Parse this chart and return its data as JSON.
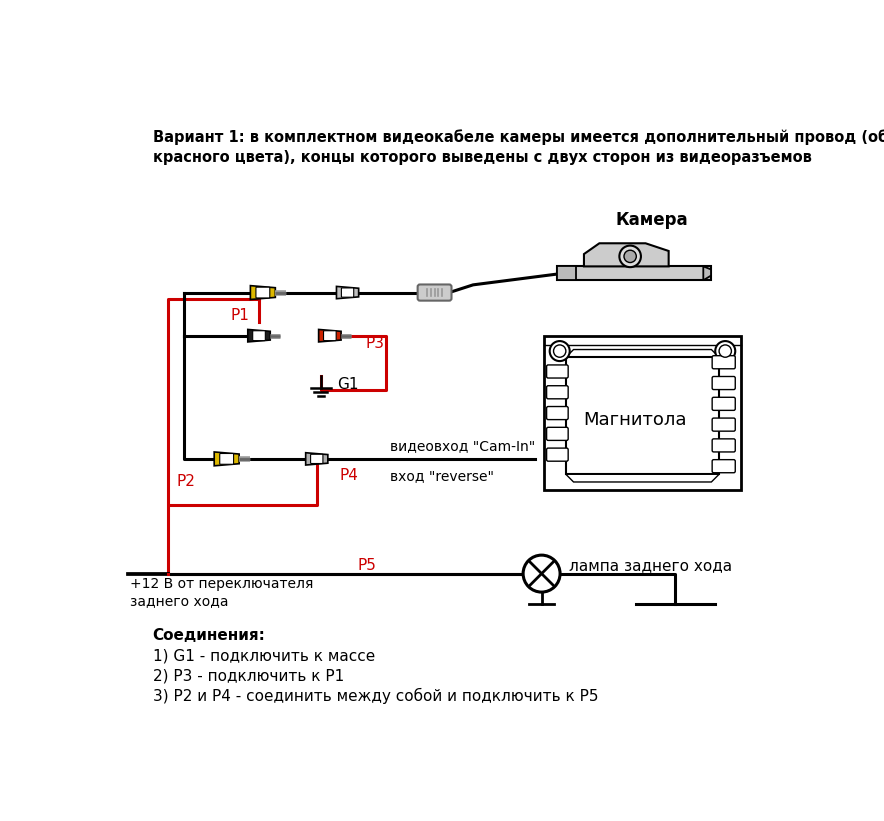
{
  "title_text": "Вариант 1: в комплектном видеокабеле камеры имеется дополнительный провод (обычно -\nкрасного цвета), концы которого выведены с двух сторон из видеоразъемов",
  "label_kamera": "Камера",
  "label_magnitola": "Магнитола",
  "label_lampa": "лампа заднего хода",
  "label_p1": "P1",
  "label_p2": "P2",
  "label_p3": "P3",
  "label_p4": "P4",
  "label_p5": "P5",
  "label_g1": "G1",
  "label_videovhod": "видеовход \"Cam-In\"",
  "label_vhod_reverse": "вход \"reverse\"",
  "label_plus12": "+12 В от переключателя\nзаднего хода",
  "label_soedineniya": "Соединения:",
  "label_s1": "1) G1 - подключить к массе",
  "label_s2": "2) Р3 - подключить к Р1",
  "label_s3": "3) Р2 и Р4 - соединить между собой и подключить к Р5",
  "bg_color": "#ffffff",
  "black": "#000000",
  "red": "#cc0000",
  "yellow": "#ddb800",
  "gray_light": "#cccccc",
  "gray_mid": "#999999",
  "gray_dark": "#666666"
}
